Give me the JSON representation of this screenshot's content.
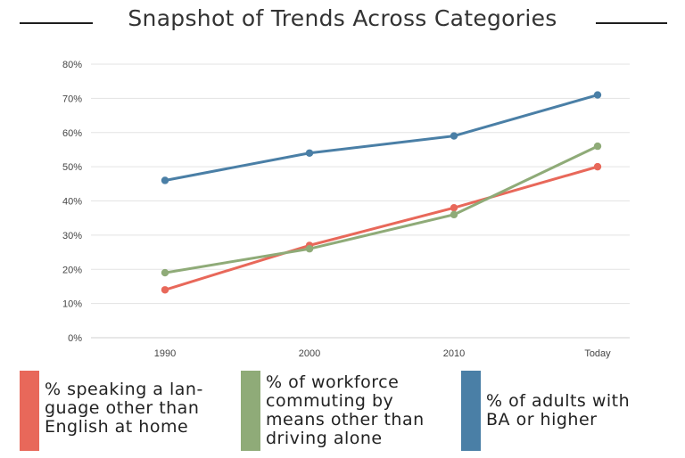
{
  "chart_data": {
    "type": "line",
    "title": "Snapshot of Trends Across Categories",
    "categories": [
      "1990",
      "2000",
      "2010",
      "Today"
    ],
    "ylim": [
      0,
      80
    ],
    "yticks": [
      "0%",
      "10%",
      "20%",
      "30%",
      "40%",
      "50%",
      "60%",
      "70%",
      "80%"
    ],
    "grid": true,
    "legend_position": "bottom",
    "series": [
      {
        "name": "% speaking a language other than English at home",
        "color": "#e8685a",
        "values": [
          14,
          27,
          38,
          50
        ]
      },
      {
        "name": "% of workforce commuting by means other than driving alone",
        "color": "#8fab78",
        "values": [
          19,
          26,
          36,
          56
        ]
      },
      {
        "name": "% of adults with BA or higher",
        "color": "#4a7fa6",
        "values": [
          46,
          54,
          59,
          71
        ]
      }
    ]
  },
  "legend": {
    "items": [
      {
        "lines": [
          "% speaking a lan-",
          "guage other than",
          "English at home"
        ],
        "color": "#e8685a"
      },
      {
        "lines": [
          "% of workforce",
          "commuting by",
          "means other than",
          "driving alone"
        ],
        "color": "#8fab78"
      },
      {
        "lines": [
          "% of adults with",
          "BA or higher"
        ],
        "color": "#4a7fa6"
      }
    ]
  }
}
